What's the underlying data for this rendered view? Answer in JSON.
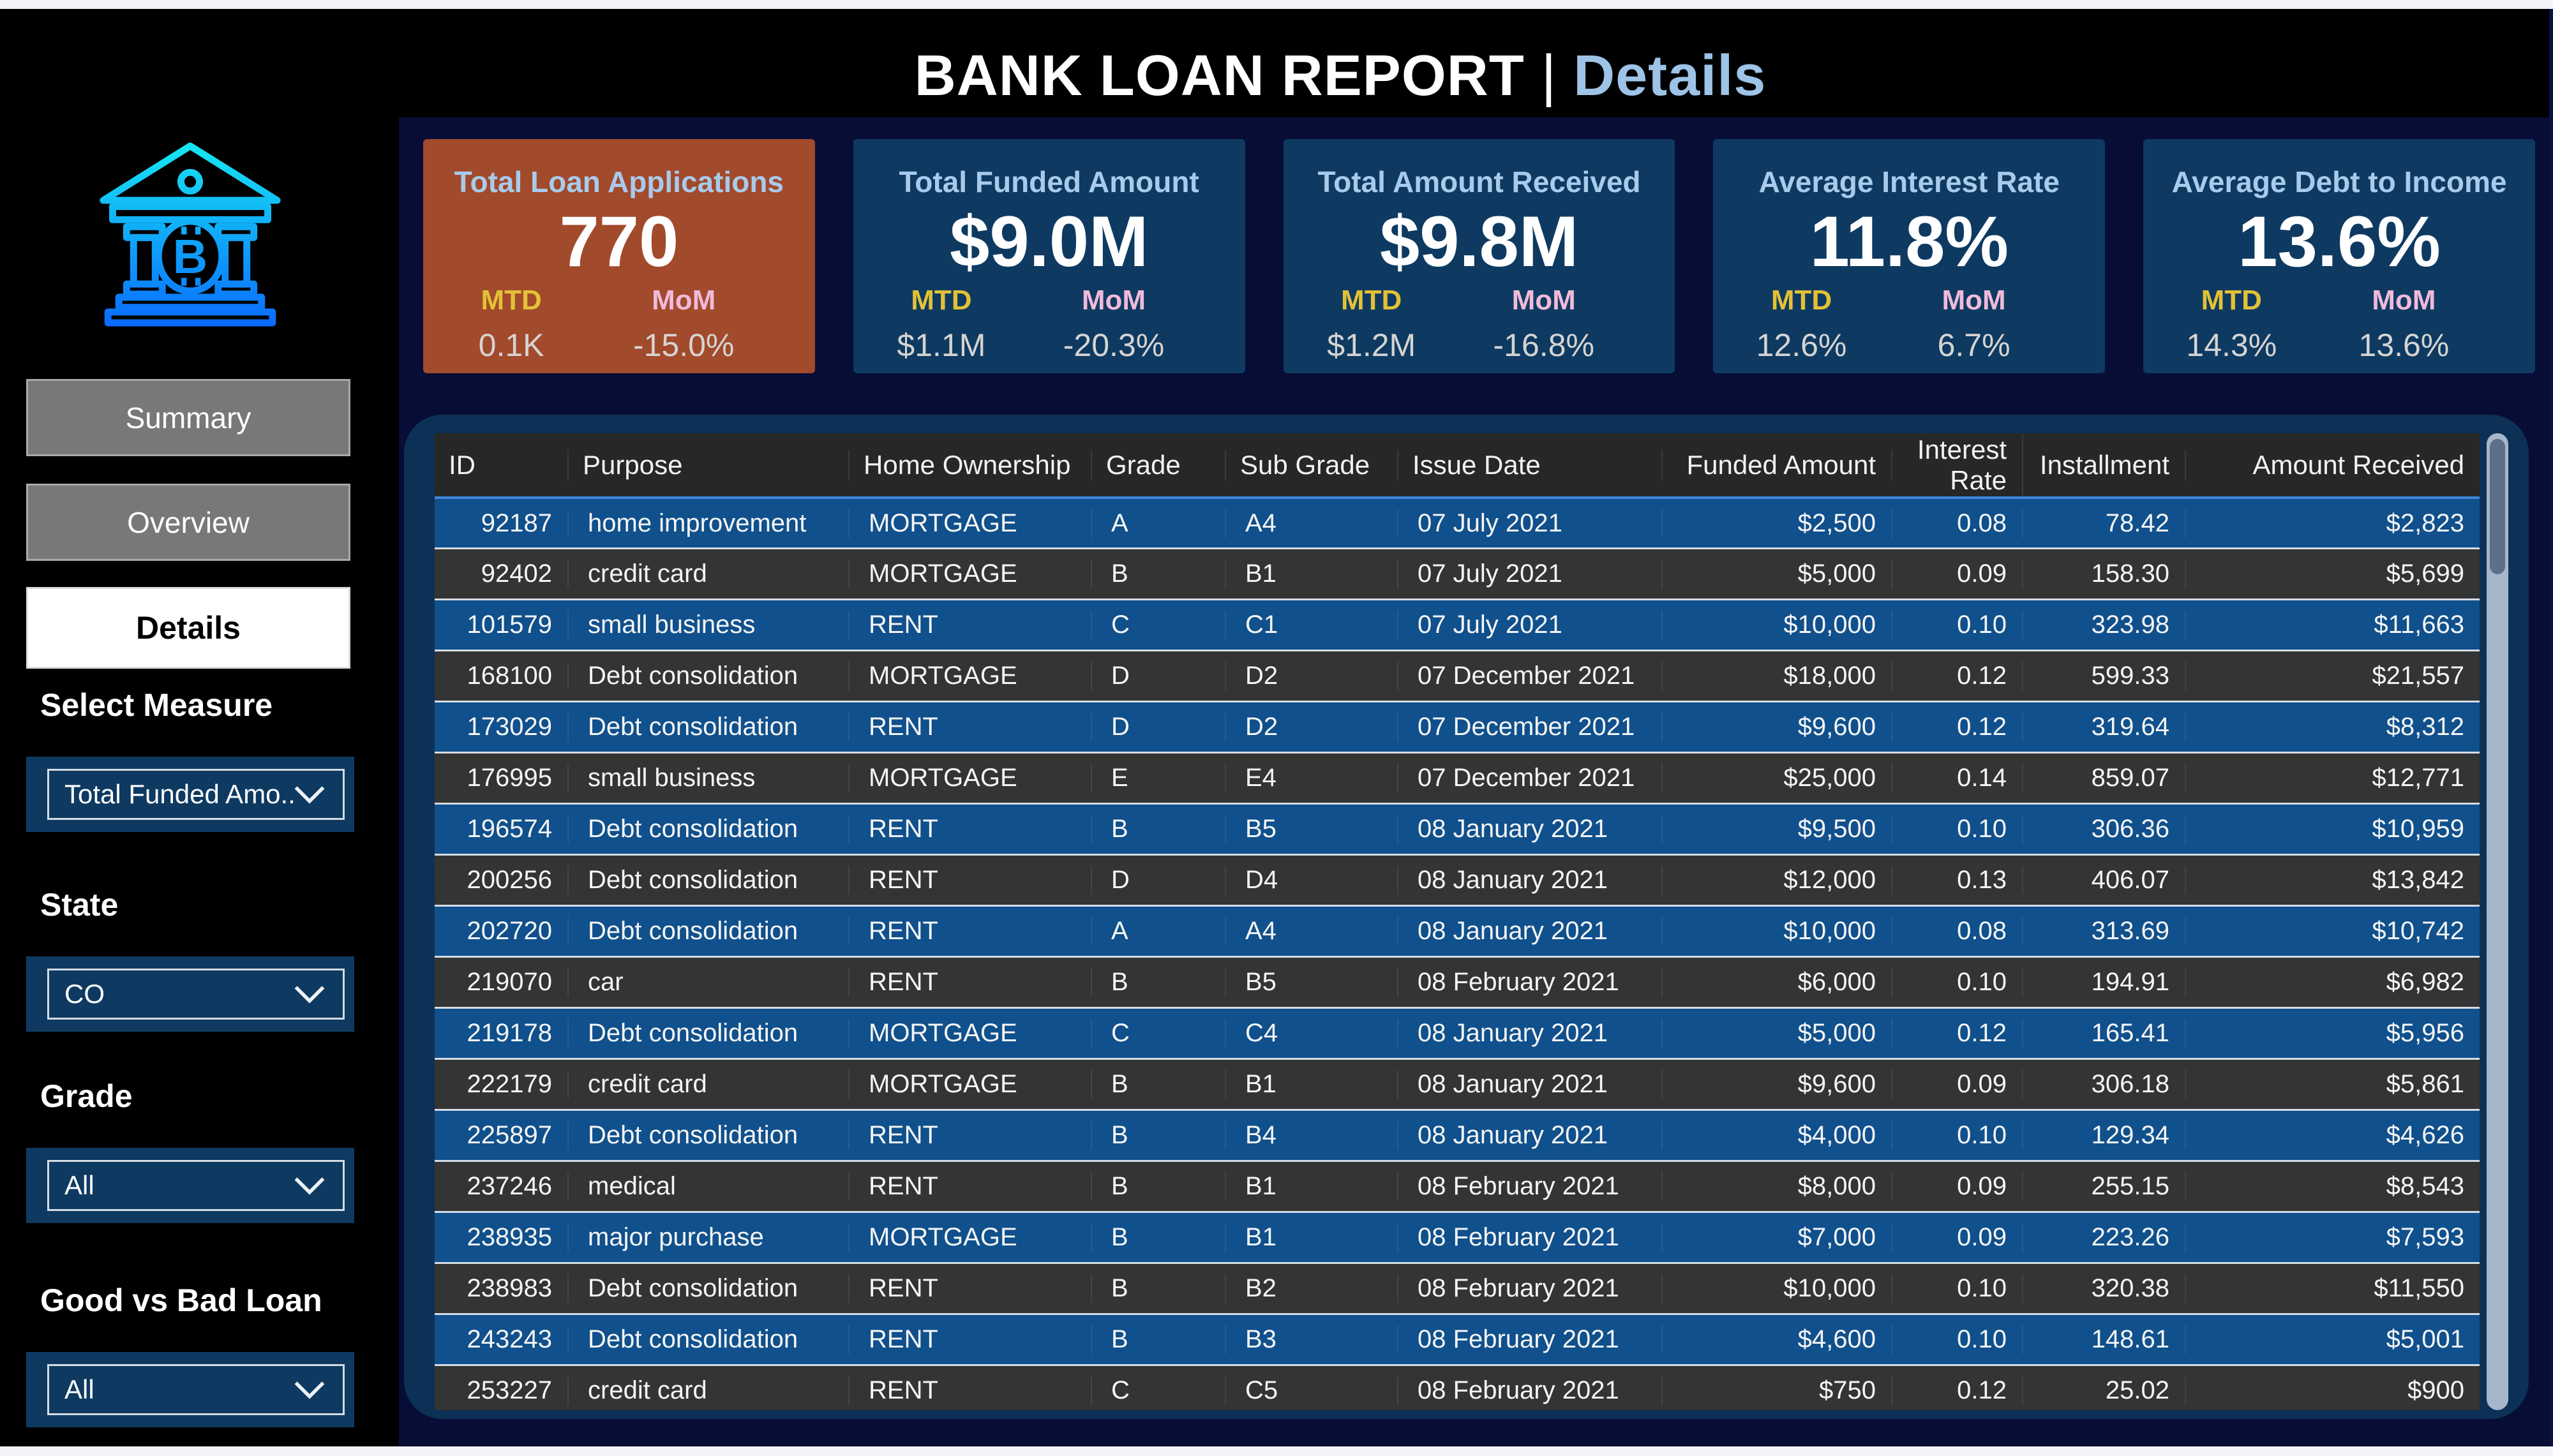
{
  "header": {
    "title": "BANK LOAN REPORT",
    "separator": "|",
    "subtitle": "Details"
  },
  "kpi_cards": [
    {
      "title": "Total Loan Applications",
      "value": "770",
      "mtd_label": "MTD",
      "mtd_value": "0.1K",
      "mom_label": "MoM",
      "mom_value": "-15.0%",
      "highlight": true
    },
    {
      "title": "Total Funded Amount",
      "value": "$9.0M",
      "mtd_label": "MTD",
      "mtd_value": "$1.1M",
      "mom_label": "MoM",
      "mom_value": "-20.3%",
      "highlight": false
    },
    {
      "title": "Total Amount Received",
      "value": "$9.8M",
      "mtd_label": "MTD",
      "mtd_value": "$1.2M",
      "mom_label": "MoM",
      "mom_value": "-16.8%",
      "highlight": false
    },
    {
      "title": "Average Interest Rate",
      "value": "11.8%",
      "mtd_label": "MTD",
      "mtd_value": "12.6%",
      "mom_label": "MoM",
      "mom_value": "6.7%",
      "highlight": false
    },
    {
      "title": "Average Debt to Income",
      "value": "13.6%",
      "mtd_label": "MTD",
      "mtd_value": "14.3%",
      "mom_label": "MoM",
      "mom_value": "13.6%",
      "highlight": false
    }
  ],
  "sidebar": {
    "logo": "bank-bitcoin-logo",
    "nav": [
      {
        "label": "Summary",
        "active": false
      },
      {
        "label": "Overview",
        "active": false
      },
      {
        "label": "Details",
        "active": true
      }
    ],
    "filters": [
      {
        "label": "Select Measure",
        "value": "Total Funded Amo..."
      },
      {
        "label": "State",
        "value": "CO"
      },
      {
        "label": "Grade",
        "value": "All"
      },
      {
        "label": "Good vs Bad Loan",
        "value": "All"
      }
    ]
  },
  "table": {
    "columns": [
      {
        "label": "ID"
      },
      {
        "label": "Purpose"
      },
      {
        "label": "Home Ownership"
      },
      {
        "label": "Grade"
      },
      {
        "label": "Sub Grade"
      },
      {
        "label": "Issue Date"
      },
      {
        "label": "Funded Amount"
      },
      {
        "label": "Interest Rate"
      },
      {
        "label": "Installment"
      },
      {
        "label": "Amount Received"
      }
    ],
    "rows": [
      [
        "92187",
        "home improvement",
        "MORTGAGE",
        "A",
        "A4",
        "07 July 2021",
        "$2,500",
        "0.08",
        "78.42",
        "$2,823"
      ],
      [
        "92402",
        "credit card",
        "MORTGAGE",
        "B",
        "B1",
        "07 July 2021",
        "$5,000",
        "0.09",
        "158.30",
        "$5,699"
      ],
      [
        "101579",
        "small business",
        "RENT",
        "C",
        "C1",
        "07 July 2021",
        "$10,000",
        "0.10",
        "323.98",
        "$11,663"
      ],
      [
        "168100",
        "Debt consolidation",
        "MORTGAGE",
        "D",
        "D2",
        "07 December 2021",
        "$18,000",
        "0.12",
        "599.33",
        "$21,557"
      ],
      [
        "173029",
        "Debt consolidation",
        "RENT",
        "D",
        "D2",
        "07 December 2021",
        "$9,600",
        "0.12",
        "319.64",
        "$8,312"
      ],
      [
        "176995",
        "small business",
        "MORTGAGE",
        "E",
        "E4",
        "07 December 2021",
        "$25,000",
        "0.14",
        "859.07",
        "$12,771"
      ],
      [
        "196574",
        "Debt consolidation",
        "RENT",
        "B",
        "B5",
        "08 January 2021",
        "$9,500",
        "0.10",
        "306.36",
        "$10,959"
      ],
      [
        "200256",
        "Debt consolidation",
        "RENT",
        "D",
        "D4",
        "08 January 2021",
        "$12,000",
        "0.13",
        "406.07",
        "$13,842"
      ],
      [
        "202720",
        "Debt consolidation",
        "RENT",
        "A",
        "A4",
        "08 January 2021",
        "$10,000",
        "0.08",
        "313.69",
        "$10,742"
      ],
      [
        "219070",
        "car",
        "RENT",
        "B",
        "B5",
        "08 February 2021",
        "$6,000",
        "0.10",
        "194.91",
        "$6,982"
      ],
      [
        "219178",
        "Debt consolidation",
        "MORTGAGE",
        "C",
        "C4",
        "08 January 2021",
        "$5,000",
        "0.12",
        "165.41",
        "$5,956"
      ],
      [
        "222179",
        "credit card",
        "MORTGAGE",
        "B",
        "B1",
        "08 January 2021",
        "$9,600",
        "0.09",
        "306.18",
        "$5,861"
      ],
      [
        "225897",
        "Debt consolidation",
        "RENT",
        "B",
        "B4",
        "08 January 2021",
        "$4,000",
        "0.10",
        "129.34",
        "$4,626"
      ],
      [
        "237246",
        "medical",
        "RENT",
        "B",
        "B1",
        "08 February 2021",
        "$8,000",
        "0.09",
        "255.15",
        "$8,543"
      ],
      [
        "238935",
        "major purchase",
        "MORTGAGE",
        "B",
        "B1",
        "08 February 2021",
        "$7,000",
        "0.09",
        "223.26",
        "$7,593"
      ],
      [
        "238983",
        "Debt consolidation",
        "RENT",
        "B",
        "B2",
        "08 February 2021",
        "$10,000",
        "0.10",
        "320.38",
        "$11,550"
      ],
      [
        "243243",
        "Debt consolidation",
        "RENT",
        "B",
        "B3",
        "08 February 2021",
        "$4,600",
        "0.10",
        "148.61",
        "$5,001"
      ],
      [
        "253227",
        "credit card",
        "RENT",
        "C",
        "C5",
        "08 February 2021",
        "$750",
        "0.12",
        "25.02",
        "$900"
      ]
    ]
  },
  "colors": {
    "accent_light_blue": "#A8CBEC",
    "page_bg": "#070D36",
    "card_bg": "#0E3A61",
    "highlight_card_bg": "#A24A2C",
    "panel_bg": "#0D3156",
    "row_blue": "#10508C",
    "row_dark": "#343434",
    "mtd_yellow": "#E3C136",
    "mom_pink": "#F0BAD9"
  }
}
